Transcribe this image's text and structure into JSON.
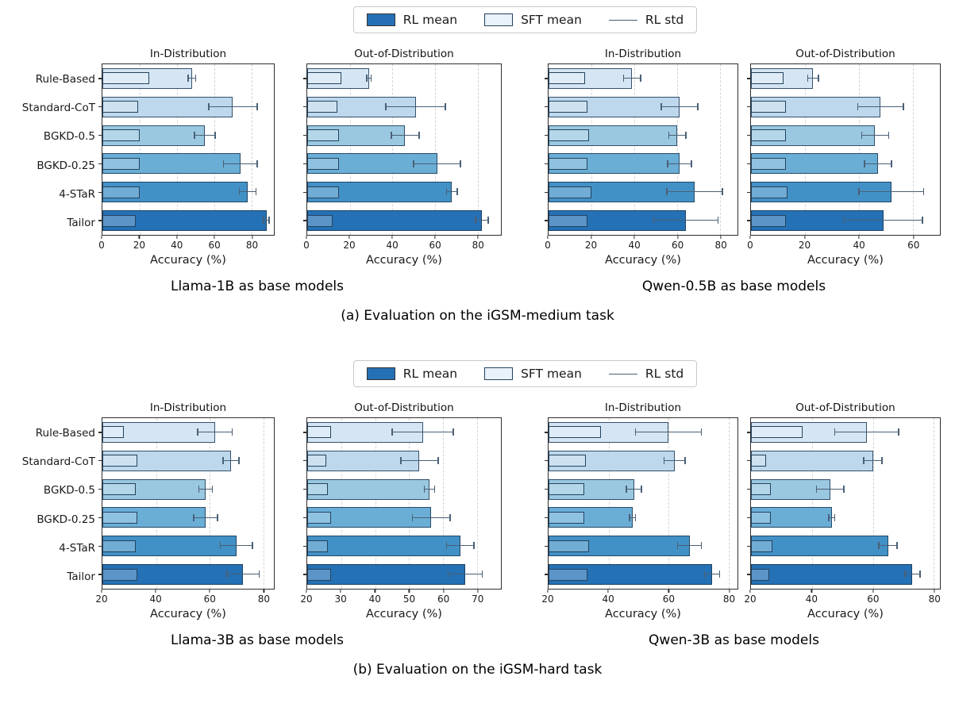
{
  "legend": {
    "items": [
      {
        "label": "RL mean",
        "swatch": "patch",
        "color": "#2570b4"
      },
      {
        "label": "SFT mean",
        "swatch": "patch",
        "color": "#e9f1fa"
      },
      {
        "label": "RL std",
        "swatch": "line",
        "color": "#4a6076"
      }
    ]
  },
  "sections": [
    {
      "label": "a",
      "caption_left": "Llama-1B as base models",
      "caption_right": "Qwen-0.5B as base models",
      "subcaption": "(a) Evaluation on the iGSM-medium task"
    },
    {
      "label": "b",
      "caption_left": "Llama-3B as base models",
      "caption_right": "Qwen-3B as base models",
      "subcaption": "(b) Evaluation on the iGSM-hard task"
    }
  ],
  "style": {
    "bar_colors": [
      "#d5e5f4",
      "#bdd7ec",
      "#9ac8e0",
      "#6aaed6",
      "#4291c6",
      "#2571b5"
    ],
    "sft_fill": "rgba(255,255,255,0.25)",
    "sft_edge": "#24435f",
    "rl_edge": "rgba(28,56,84,0.85)",
    "err_color": "#4a6076",
    "axis_color": "#2f2f2f",
    "grid_color": "#d3d3d3"
  },
  "chart_data": [
    {
      "type": "bar",
      "orientation": "horizontal",
      "title": "In-Distribution",
      "base_model": "Llama-1B",
      "task": "iGSM-medium",
      "xlabel": "Accuracy (%)",
      "xlim": [
        0,
        92
      ],
      "xticks": [
        0,
        20,
        40,
        60,
        80
      ],
      "grid": "dashed-vertical",
      "categories": [
        "Rule-Based",
        "Standard-CoT",
        "BGKD-0.5",
        "BGKD-0.25",
        "4-STaR",
        "Tailor"
      ],
      "series": [
        {
          "name": "RL mean",
          "values": [
            48,
            70,
            55,
            74,
            78,
            88
          ]
        },
        {
          "name": "SFT mean",
          "values": [
            25,
            19,
            20,
            20,
            20,
            18
          ]
        },
        {
          "name": "RL std",
          "values": [
            2,
            13,
            5.5,
            9,
            4.5,
            1.5
          ]
        }
      ]
    },
    {
      "type": "bar",
      "orientation": "horizontal",
      "title": "Out-of-Distribution",
      "base_model": "Llama-1B",
      "task": "iGSM-medium",
      "xlabel": "Accuracy (%)",
      "xlim": [
        0,
        91
      ],
      "xticks": [
        0,
        20,
        40,
        60,
        80
      ],
      "grid": "dashed-vertical",
      "categories": [
        "Rule-Based",
        "Standard-CoT",
        "BGKD-0.5",
        "BGKD-0.25",
        "4-STaR",
        "Tailor"
      ],
      "series": [
        {
          "name": "RL mean",
          "values": [
            29,
            51,
            46,
            61,
            68,
            82
          ]
        },
        {
          "name": "SFT mean",
          "values": [
            16,
            14,
            15,
            15,
            15,
            12
          ]
        },
        {
          "name": "RL std",
          "values": [
            1,
            14,
            6.5,
            11,
            2.5,
            3
          ]
        }
      ]
    },
    {
      "type": "bar",
      "orientation": "horizontal",
      "title": "In-Distribution",
      "base_model": "Qwen-0.5B",
      "task": "iGSM-medium",
      "xlabel": "Accuracy (%)",
      "xlim": [
        0,
        88
      ],
      "xticks": [
        0,
        20,
        40,
        60,
        80
      ],
      "grid": "dashed-vertical",
      "categories": [
        "Rule-Based",
        "Standard-CoT",
        "BGKD-0.5",
        "BGKD-0.25",
        "4-STaR",
        "Tailor"
      ],
      "series": [
        {
          "name": "RL mean",
          "values": [
            39,
            61,
            60,
            61,
            68,
            64
          ]
        },
        {
          "name": "SFT mean",
          "values": [
            17,
            18,
            19,
            18,
            20,
            18
          ]
        },
        {
          "name": "RL std",
          "values": [
            4,
            8.5,
            4,
            5.5,
            13,
            15
          ]
        }
      ]
    },
    {
      "type": "bar",
      "orientation": "horizontal",
      "title": "Out-of-Distribution",
      "base_model": "Qwen-0.5B",
      "task": "iGSM-medium",
      "xlabel": "Accuracy (%)",
      "xlim": [
        0,
        70
      ],
      "xticks": [
        0,
        20,
        40,
        60
      ],
      "grid": "dashed-vertical",
      "categories": [
        "Rule-Based",
        "Standard-CoT",
        "BGKD-0.5",
        "BGKD-0.25",
        "4-STaR",
        "Tailor"
      ],
      "series": [
        {
          "name": "RL mean",
          "values": [
            23,
            48,
            46,
            47,
            52,
            49
          ]
        },
        {
          "name": "SFT mean",
          "values": [
            12,
            13,
            13,
            13,
            13.5,
            13
          ]
        },
        {
          "name": "RL std",
          "values": [
            2,
            8.5,
            5,
            5,
            12,
            14.5
          ]
        }
      ]
    },
    {
      "type": "bar",
      "orientation": "horizontal",
      "title": "In-Distribution",
      "base_model": "Llama-3B",
      "task": "iGSM-hard",
      "xlabel": "Accuracy (%)",
      "xlim": [
        20,
        84
      ],
      "xticks": [
        20,
        40,
        60,
        80
      ],
      "grid": "dashed-vertical",
      "categories": [
        "Rule-Based",
        "Standard-CoT",
        "BGKD-0.5",
        "BGKD-0.25",
        "4-STaR",
        "Tailor"
      ],
      "series": [
        {
          "name": "RL mean",
          "values": [
            62,
            68,
            58.5,
            58.5,
            70,
            72.5
          ]
        },
        {
          "name": "SFT mean",
          "values": [
            28,
            33,
            32.5,
            33,
            32.5,
            33
          ]
        },
        {
          "name": "RL std",
          "values": [
            6.5,
            3,
            2.5,
            4.5,
            6,
            6
          ]
        }
      ]
    },
    {
      "type": "bar",
      "orientation": "horizontal",
      "title": "Out-of-Distribution",
      "base_model": "Llama-3B",
      "task": "iGSM-hard",
      "xlabel": "Accuracy (%)",
      "xlim": [
        20,
        77
      ],
      "xticks": [
        20,
        30,
        40,
        50,
        60,
        70
      ],
      "grid": "dashed-vertical",
      "categories": [
        "Rule-Based",
        "Standard-CoT",
        "BGKD-0.5",
        "BGKD-0.25",
        "4-STaR",
        "Tailor"
      ],
      "series": [
        {
          "name": "RL mean",
          "values": [
            54,
            53,
            56,
            56.5,
            65,
            66.5
          ]
        },
        {
          "name": "SFT mean",
          "values": [
            27,
            25.5,
            26,
            27,
            26,
            27
          ]
        },
        {
          "name": "RL std",
          "values": [
            9,
            5.5,
            1.5,
            5.5,
            4,
            5
          ]
        }
      ]
    },
    {
      "type": "bar",
      "orientation": "horizontal",
      "title": "In-Distribution",
      "base_model": "Qwen-3B",
      "task": "iGSM-hard",
      "xlabel": "Accuracy (%)",
      "xlim": [
        20,
        83
      ],
      "xticks": [
        20,
        40,
        60,
        80
      ],
      "grid": "dashed-vertical",
      "categories": [
        "Rule-Based",
        "Standard-CoT",
        "BGKD-0.5",
        "BGKD-0.25",
        "4-STaR",
        "Tailor"
      ],
      "series": [
        {
          "name": "RL mean",
          "values": [
            60,
            62,
            48.5,
            48,
            67,
            74.5
          ]
        },
        {
          "name": "SFT mean",
          "values": [
            37.5,
            32.5,
            32,
            32,
            33.5,
            33
          ]
        },
        {
          "name": "RL std",
          "values": [
            11,
            3.5,
            2.5,
            1,
            4,
            2.5
          ]
        }
      ]
    },
    {
      "type": "bar",
      "orientation": "horizontal",
      "title": "Out-of-Distribution",
      "base_model": "Qwen-3B",
      "task": "iGSM-hard",
      "xlabel": "Accuracy (%)",
      "xlim": [
        20,
        82
      ],
      "xticks": [
        20,
        40,
        60,
        80
      ],
      "grid": "dashed-vertical",
      "categories": [
        "Rule-Based",
        "Standard-CoT",
        "BGKD-0.5",
        "BGKD-0.25",
        "4-STaR",
        "Tailor"
      ],
      "series": [
        {
          "name": "RL mean",
          "values": [
            58,
            60,
            46,
            46.5,
            65,
            73
          ]
        },
        {
          "name": "SFT mean",
          "values": [
            37,
            25,
            26.5,
            26.5,
            27,
            26
          ]
        },
        {
          "name": "RL std",
          "values": [
            10.5,
            3,
            4.5,
            1,
            3,
            2.5
          ]
        }
      ]
    }
  ]
}
